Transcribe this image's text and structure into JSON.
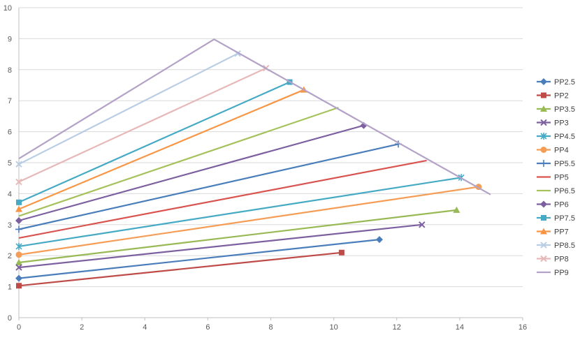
{
  "chart_data": {
    "type": "scatter",
    "xlim": [
      0,
      16
    ],
    "ylim": [
      0,
      10
    ],
    "x_ticks": [
      "0",
      "2",
      "4",
      "6",
      "8",
      "10",
      "12",
      "14",
      "16"
    ],
    "y_ticks": [
      "0",
      "1",
      "2",
      "3",
      "4",
      "5",
      "6",
      "7",
      "8",
      "9",
      "10"
    ],
    "grid": "horizontal",
    "legend_position": "right",
    "series": [
      {
        "name": "PP2.5",
        "color": "#4a7ebb",
        "marker": "diamond",
        "points": [
          [
            0,
            1.27
          ],
          [
            11.45,
            2.52
          ]
        ]
      },
      {
        "name": "PP2",
        "color": "#be4b48",
        "marker": "square",
        "points": [
          [
            0,
            1.03
          ],
          [
            10.25,
            2.1
          ]
        ]
      },
      {
        "name": "PP3.5",
        "color": "#98b954",
        "marker": "triangle",
        "points": [
          [
            0,
            1.78
          ],
          [
            13.9,
            3.47
          ]
        ]
      },
      {
        "name": "PP3",
        "color": "#7d60a0",
        "marker": "x",
        "points": [
          [
            0,
            1.62
          ],
          [
            12.8,
            3.0
          ]
        ]
      },
      {
        "name": "PP4.5",
        "color": "#46aac5",
        "marker": "star",
        "points": [
          [
            0,
            2.3
          ],
          [
            14.05,
            4.52
          ]
        ]
      },
      {
        "name": "PP4",
        "color": "#f59d56",
        "marker": "circle",
        "points": [
          [
            0,
            2.03
          ],
          [
            14.6,
            4.22
          ]
        ]
      },
      {
        "name": "PP5.5",
        "color": "#4a7ebb",
        "marker": "plus",
        "points": [
          [
            0,
            2.85
          ],
          [
            12.05,
            5.6
          ]
        ]
      },
      {
        "name": "PP5",
        "color": "#d9534f",
        "marker": "none",
        "points": [
          [
            0,
            2.57
          ],
          [
            12.95,
            5.07
          ]
        ]
      },
      {
        "name": "PP6.5",
        "color": "#a5c25c",
        "marker": "none",
        "points": [
          [
            0,
            3.28
          ],
          [
            10.15,
            6.78
          ]
        ]
      },
      {
        "name": "PP6",
        "color": "#7d60a0",
        "marker": "diamond",
        "points": [
          [
            0,
            3.13
          ],
          [
            10.95,
            6.2
          ]
        ]
      },
      {
        "name": "PP7.5",
        "color": "#46aac5",
        "marker": "square",
        "points": [
          [
            0,
            3.72
          ],
          [
            8.6,
            7.6
          ]
        ]
      },
      {
        "name": "PP7",
        "color": "#f79646",
        "marker": "triangle",
        "points": [
          [
            0,
            3.5
          ],
          [
            9.05,
            7.35
          ]
        ]
      },
      {
        "name": "PP8.5",
        "color": "#b9cde5",
        "marker": "x",
        "points": [
          [
            0,
            4.95
          ],
          [
            6.95,
            8.52
          ]
        ]
      },
      {
        "name": "PP8",
        "color": "#e6b9b8",
        "marker": "x",
        "points": [
          [
            0,
            4.38
          ],
          [
            7.85,
            8.05
          ]
        ]
      },
      {
        "name": "PP9",
        "color": "#b3a2c7",
        "marker": "none",
        "points": [
          [
            0,
            5.13
          ],
          [
            6.2,
            8.98
          ],
          [
            14.98,
            3.97
          ]
        ]
      }
    ]
  }
}
